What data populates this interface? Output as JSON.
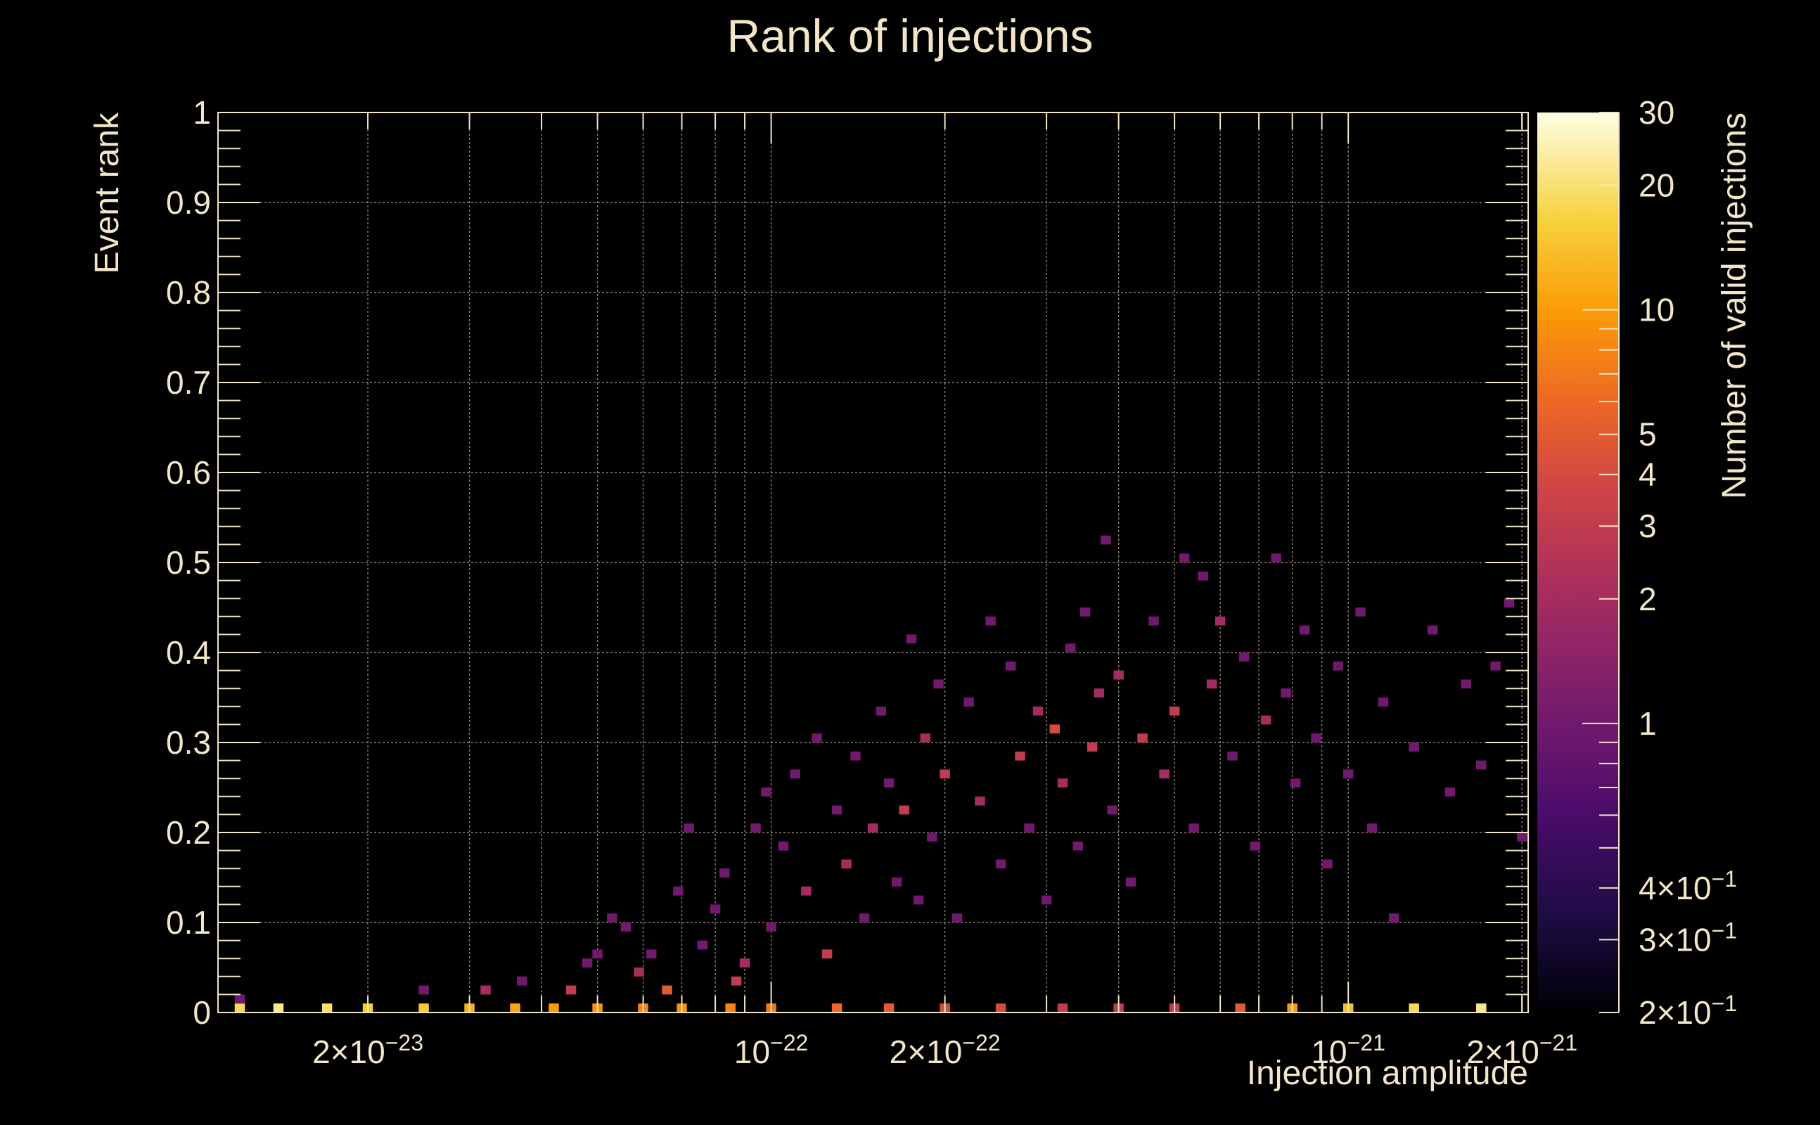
{
  "chart_data": {
    "type": "heatmap",
    "title": "Rank of injections",
    "xlabel": "Injection amplitude",
    "ylabel": "Event rank",
    "zlabel": "Number of valid injections",
    "x_scale": "log",
    "z_scale": "log",
    "xlim": [
      1.1e-23,
      2.05e-21
    ],
    "ylim": [
      0,
      1
    ],
    "zlim": [
      0.2,
      30
    ],
    "grid": true,
    "colormap": "inferno",
    "x_ticks": [
      {
        "value": 2e-23,
        "mant": "2×10",
        "exp": "−23"
      },
      {
        "value": 1e-22,
        "mant": "10",
        "exp": "−22"
      },
      {
        "value": 2e-22,
        "mant": "2×10",
        "exp": "−22"
      },
      {
        "value": 1e-21,
        "mant": "10",
        "exp": "−21"
      },
      {
        "value": 2e-21,
        "mant": "2×10",
        "exp": "−21"
      }
    ],
    "y_ticks": [
      {
        "value": 0,
        "label": "0"
      },
      {
        "value": 0.1,
        "label": "0.1"
      },
      {
        "value": 0.2,
        "label": "0.2"
      },
      {
        "value": 0.3,
        "label": "0.3"
      },
      {
        "value": 0.4,
        "label": "0.4"
      },
      {
        "value": 0.5,
        "label": "0.5"
      },
      {
        "value": 0.6,
        "label": "0.6"
      },
      {
        "value": 0.7,
        "label": "0.7"
      },
      {
        "value": 0.8,
        "label": "0.8"
      },
      {
        "value": 0.9,
        "label": "0.9"
      },
      {
        "value": 1,
        "label": "1"
      }
    ],
    "z_ticks": [
      {
        "value": 30,
        "mant": "30",
        "exp": ""
      },
      {
        "value": 20,
        "mant": "20",
        "exp": ""
      },
      {
        "value": 10,
        "mant": "10",
        "exp": ""
      },
      {
        "value": 5,
        "mant": "5",
        "exp": ""
      },
      {
        "value": 4,
        "mant": "4",
        "exp": ""
      },
      {
        "value": 3,
        "mant": "3",
        "exp": ""
      },
      {
        "value": 2,
        "mant": "2",
        "exp": ""
      },
      {
        "value": 1,
        "mant": "1",
        "exp": ""
      },
      {
        "value": 0.4,
        "mant": "4×10",
        "exp": "−1"
      },
      {
        "value": 0.3,
        "mant": "3×10",
        "exp": "−1"
      },
      {
        "value": 0.2,
        "mant": "2×10",
        "exp": "−1"
      }
    ],
    "bin_width_y": 0.01,
    "bins": [
      [
        1.2e-23,
        0.0,
        18
      ],
      [
        1.4e-23,
        0.0,
        22
      ],
      [
        1.7e-23,
        0.0,
        20
      ],
      [
        2e-23,
        0.0,
        16
      ],
      [
        2.5e-23,
        0.0,
        15
      ],
      [
        3e-23,
        0.0,
        12
      ],
      [
        3.6e-23,
        0.0,
        11
      ],
      [
        4.2e-23,
        0.0,
        10
      ],
      [
        5e-23,
        0.0,
        9
      ],
      [
        6e-23,
        0.0,
        8
      ],
      [
        7e-23,
        0.0,
        9
      ],
      [
        8.5e-23,
        0.0,
        8
      ],
      [
        1e-22,
        0.0,
        7
      ],
      [
        1.3e-22,
        0.0,
        6
      ],
      [
        1.6e-22,
        0.0,
        5
      ],
      [
        2e-22,
        0.0,
        4
      ],
      [
        2.5e-22,
        0.0,
        4
      ],
      [
        3.2e-22,
        0.0,
        3
      ],
      [
        4e-22,
        0.0,
        3
      ],
      [
        5e-22,
        0.0,
        3
      ],
      [
        6.5e-22,
        0.0,
        5
      ],
      [
        8e-22,
        0.0,
        10
      ],
      [
        1e-21,
        0.0,
        14
      ],
      [
        1.3e-21,
        0.0,
        18
      ],
      [
        1.7e-21,
        0.0,
        22
      ],
      [
        1.2e-23,
        0.01,
        1
      ],
      [
        2.5e-23,
        0.02,
        1
      ],
      [
        3.2e-23,
        0.02,
        2
      ],
      [
        3.7e-23,
        0.03,
        1
      ],
      [
        4.5e-23,
        0.02,
        3
      ],
      [
        4.8e-23,
        0.05,
        1
      ],
      [
        5e-23,
        0.06,
        1
      ],
      [
        5.3e-23,
        0.1,
        1
      ],
      [
        5.6e-23,
        0.09,
        1
      ],
      [
        5.9e-23,
        0.04,
        2
      ],
      [
        6.2e-23,
        0.06,
        1
      ],
      [
        6.6e-23,
        0.02,
        5
      ],
      [
        6.9e-23,
        0.13,
        1
      ],
      [
        7.2e-23,
        0.2,
        1
      ],
      [
        7.6e-23,
        0.07,
        1
      ],
      [
        8e-23,
        0.11,
        1
      ],
      [
        8.3e-23,
        0.15,
        1
      ],
      [
        8.7e-23,
        0.03,
        3
      ],
      [
        9e-23,
        0.05,
        2
      ],
      [
        9.4e-23,
        0.2,
        1
      ],
      [
        9.8e-23,
        0.24,
        1
      ],
      [
        1e-22,
        0.09,
        1
      ],
      [
        1.05e-22,
        0.18,
        1
      ],
      [
        1.1e-22,
        0.26,
        1
      ],
      [
        1.15e-22,
        0.13,
        2
      ],
      [
        1.2e-22,
        0.3,
        1
      ],
      [
        1.25e-22,
        0.06,
        3
      ],
      [
        1.3e-22,
        0.22,
        1
      ],
      [
        1.35e-22,
        0.16,
        2
      ],
      [
        1.4e-22,
        0.28,
        1
      ],
      [
        1.45e-22,
        0.1,
        1
      ],
      [
        1.5e-22,
        0.2,
        2
      ],
      [
        1.55e-22,
        0.33,
        1
      ],
      [
        1.6e-22,
        0.25,
        1
      ],
      [
        1.65e-22,
        0.14,
        1
      ],
      [
        1.7e-22,
        0.22,
        3
      ],
      [
        1.75e-22,
        0.41,
        1
      ],
      [
        1.8e-22,
        0.12,
        1
      ],
      [
        1.85e-22,
        0.3,
        2
      ],
      [
        1.9e-22,
        0.19,
        1
      ],
      [
        1.95e-22,
        0.36,
        1
      ],
      [
        2e-22,
        0.26,
        3
      ],
      [
        2.1e-22,
        0.1,
        1
      ],
      [
        2.2e-22,
        0.34,
        1
      ],
      [
        2.3e-22,
        0.23,
        2
      ],
      [
        2.4e-22,
        0.43,
        1
      ],
      [
        2.5e-22,
        0.16,
        1
      ],
      [
        2.6e-22,
        0.38,
        1
      ],
      [
        2.7e-22,
        0.28,
        3
      ],
      [
        2.8e-22,
        0.2,
        1
      ],
      [
        2.9e-22,
        0.33,
        2
      ],
      [
        3e-22,
        0.12,
        1
      ],
      [
        3.1e-22,
        0.31,
        4
      ],
      [
        3.2e-22,
        0.25,
        2
      ],
      [
        3.3e-22,
        0.4,
        1
      ],
      [
        3.4e-22,
        0.18,
        1
      ],
      [
        3.5e-22,
        0.44,
        1
      ],
      [
        3.6e-22,
        0.29,
        3
      ],
      [
        3.7e-22,
        0.35,
        2
      ],
      [
        3.8e-22,
        0.52,
        1
      ],
      [
        3.9e-22,
        0.22,
        1
      ],
      [
        4e-22,
        0.37,
        2
      ],
      [
        4.2e-22,
        0.14,
        1
      ],
      [
        4.4e-22,
        0.3,
        3
      ],
      [
        4.6e-22,
        0.43,
        1
      ],
      [
        4.8e-22,
        0.26,
        2
      ],
      [
        5e-22,
        0.33,
        3
      ],
      [
        5.2e-22,
        0.5,
        1
      ],
      [
        5.4e-22,
        0.2,
        1
      ],
      [
        5.6e-22,
        0.48,
        1
      ],
      [
        5.8e-22,
        0.36,
        2
      ],
      [
        6e-22,
        0.43,
        2
      ],
      [
        6.3e-22,
        0.28,
        1
      ],
      [
        6.6e-22,
        0.39,
        1
      ],
      [
        6.9e-22,
        0.18,
        1
      ],
      [
        7.2e-22,
        0.32,
        2
      ],
      [
        7.5e-22,
        0.5,
        1
      ],
      [
        7.8e-22,
        0.35,
        1
      ],
      [
        8.1e-22,
        0.25,
        1
      ],
      [
        8.4e-22,
        0.42,
        1
      ],
      [
        8.8e-22,
        0.3,
        1
      ],
      [
        9.2e-22,
        0.16,
        1
      ],
      [
        9.6e-22,
        0.38,
        1
      ],
      [
        1e-21,
        0.26,
        1
      ],
      [
        1.05e-21,
        0.44,
        1
      ],
      [
        1.1e-21,
        0.2,
        1
      ],
      [
        1.15e-21,
        0.34,
        1
      ],
      [
        1.2e-21,
        0.1,
        1
      ],
      [
        1.3e-21,
        0.29,
        1
      ],
      [
        1.4e-21,
        0.42,
        1
      ],
      [
        1.5e-21,
        0.24,
        1
      ],
      [
        1.6e-21,
        0.36,
        1
      ],
      [
        1.7e-21,
        0.27,
        1
      ],
      [
        1.8e-21,
        0.38,
        1
      ],
      [
        1.9e-21,
        0.45,
        1
      ],
      [
        2e-21,
        0.19,
        1
      ]
    ]
  }
}
